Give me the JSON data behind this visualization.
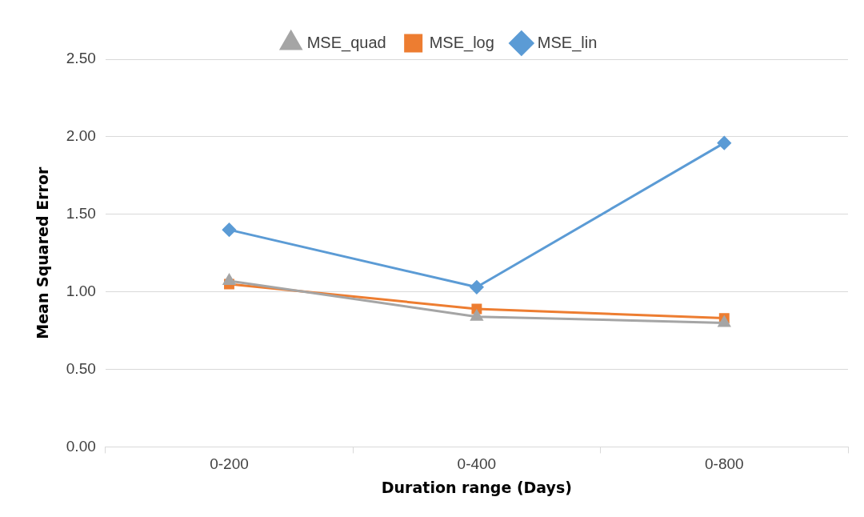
{
  "chart_data": {
    "type": "line",
    "xlabel": "Duration range (Days)",
    "ylabel": "Mean Squared Error",
    "categories": [
      "0-200",
      "0-400",
      "0-800"
    ],
    "series": [
      {
        "name": "MSE_lin",
        "color": "#5b9bd5",
        "marker": "diamond",
        "values": [
          1.4,
          1.03,
          1.96
        ]
      },
      {
        "name": "MSE_log",
        "color": "#ed7d31",
        "marker": "square",
        "values": [
          1.05,
          0.89,
          0.83
        ]
      },
      {
        "name": "MSE_quad",
        "color": "#a5a5a5",
        "marker": "triangle",
        "values": [
          1.07,
          0.84,
          0.8
        ]
      }
    ],
    "ylim": [
      0,
      2.5
    ],
    "yticks": [
      {
        "value": 0,
        "label": "0.00"
      },
      {
        "value": 0.5,
        "label": "0.50"
      },
      {
        "value": 1,
        "label": "1.00"
      },
      {
        "value": 1.5,
        "label": "1.50"
      },
      {
        "value": 2,
        "label": "2.00"
      },
      {
        "value": 2.5,
        "label": "2.50"
      }
    ],
    "grid": "y",
    "legend": "top",
    "line_style": "solid"
  }
}
